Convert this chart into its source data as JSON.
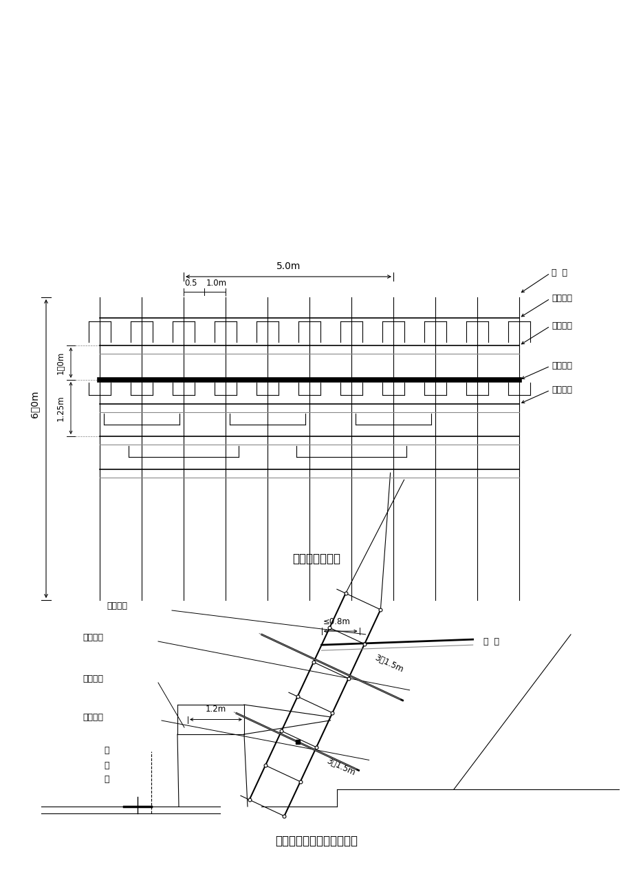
{
  "bg_color": "#ffffff",
  "title1": "排架网格示意图",
  "title2": "排架侧面及操作平台示意图",
  "top_labels": {
    "li_zhu": "立  柱",
    "er_ceng": "二层排架",
    "zheng_ti": "整体顺梁",
    "di_ceng": "底层排架",
    "yi_ban": "一般顺梁",
    "dim_5m": "5.0m",
    "dim_05": "0.5",
    "dim_1m": "1.0m",
    "dim_1m_v": "1．0m",
    "dim_125m": "1.25m",
    "dim_6m": "6．0m"
  },
  "bot_labels": {
    "jia_ban": "夹板螺栓",
    "yi_ban_shun": "一般顺梁",
    "cao_zuo": "操作平台",
    "zheng_ti_shun": "整体顺梁",
    "ji_you_xian": "既\n有\n线",
    "mao_gan": "锚  杆",
    "dim_08m": "≤0.8m",
    "dim_12m": "1.2m",
    "dim_3x15": "3＊1.5m"
  }
}
